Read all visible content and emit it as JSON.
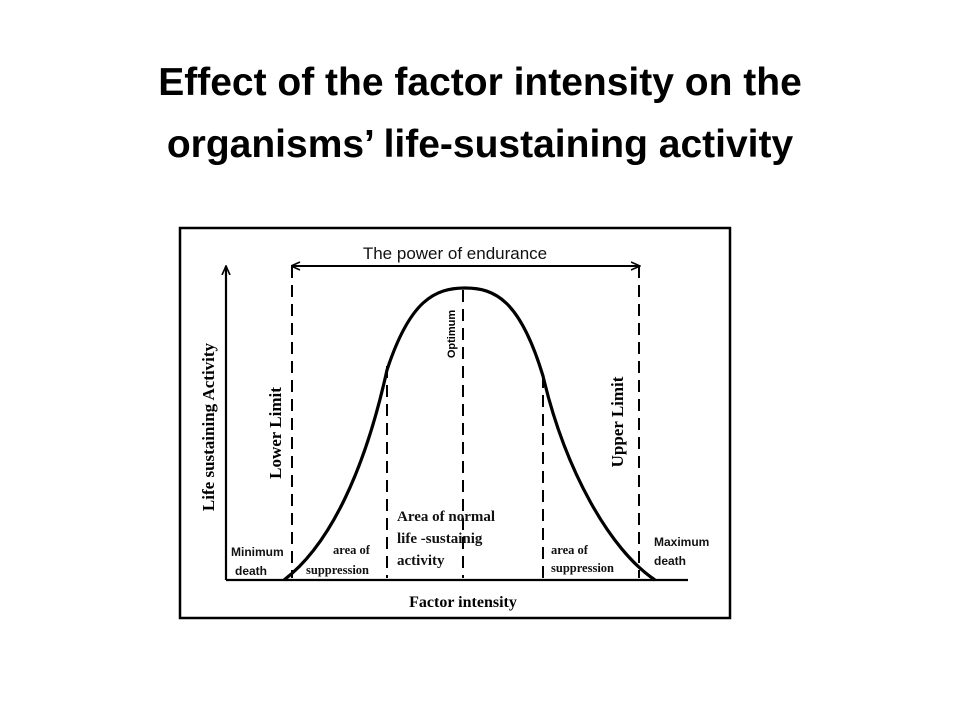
{
  "title": {
    "line1": "Effect of the factor intensity on the",
    "line2": "organisms’ life-sustaining activity"
  },
  "diagram": {
    "endurance_label": "The power of endurance",
    "optimum_label": "Optimum",
    "y_axis_label": "Life  sustaining Activity",
    "x_axis_label": "Factor intensity",
    "lower_limit_label": "Lower Limit",
    "upper_limit_label": "Upper Limit",
    "min_death": [
      "Minimum",
      "death"
    ],
    "max_death": [
      "Maximum",
      "death"
    ],
    "suppression_left": [
      "area of",
      "suppression"
    ],
    "suppression_right": [
      "area of",
      "suppression"
    ],
    "normal_area": [
      "Area of normal",
      "life -sustainig",
      "activity"
    ]
  }
}
